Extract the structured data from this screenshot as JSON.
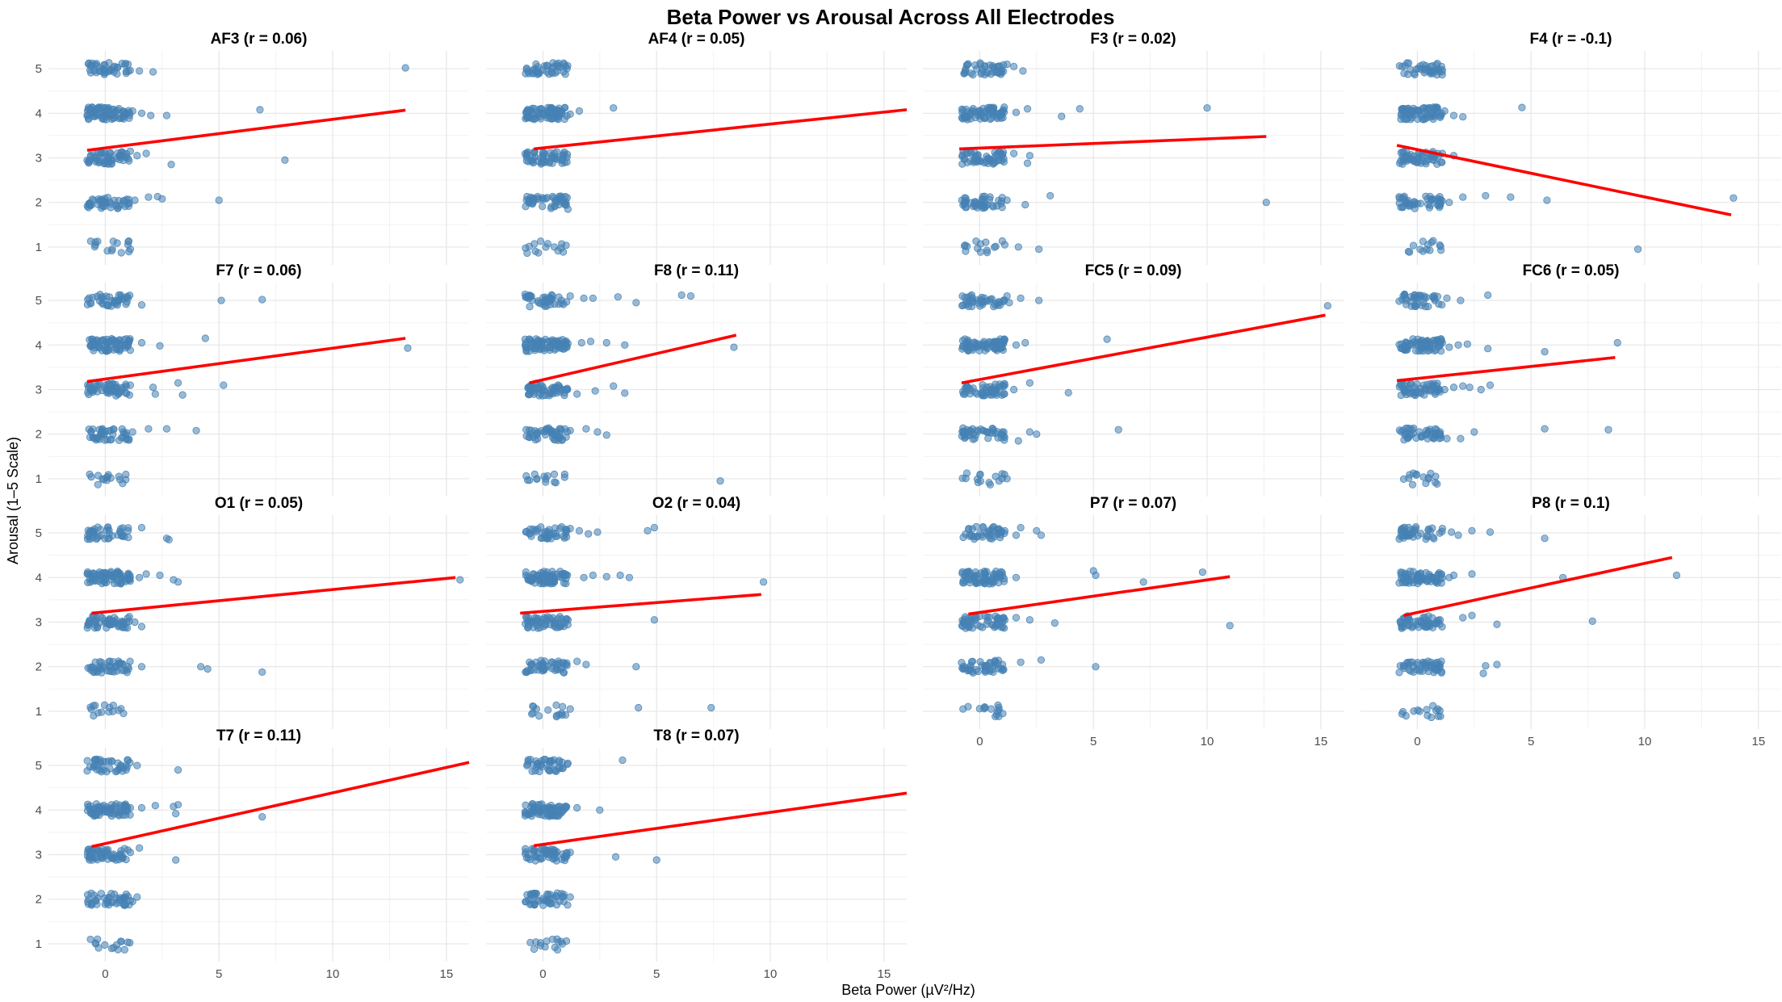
{
  "chart_data": {
    "type": "scatter",
    "title": "Beta Power vs Arousal Across All Electrodes",
    "xlabel": "Beta Power (µV²/Hz)",
    "ylabel": "Arousal (1–5 Scale)",
    "x_ticks": [
      0,
      5,
      10,
      15
    ],
    "y_ticks": [
      1,
      2,
      3,
      4,
      5
    ],
    "xlim": [
      -2.5,
      16
    ],
    "ylim": [
      0.6,
      5.4
    ],
    "grid": true,
    "legend": "none",
    "colors": {
      "points": "#4682b4",
      "fit_line": "#ff0000"
    },
    "panels": [
      {
        "title": "AF3 (r = 0.06)",
        "fit": {
          "x": [
            -0.8,
            13.2
          ],
          "y": [
            3.17,
            4.07
          ]
        },
        "points": [
          [
            1.0,
            5.1
          ],
          [
            1.5,
            4.95
          ],
          [
            2.1,
            4.93
          ],
          [
            13.2,
            5.02
          ],
          [
            1.2,
            4.05
          ],
          [
            1.6,
            4.0
          ],
          [
            2.0,
            3.95
          ],
          [
            2.7,
            3.95
          ],
          [
            6.8,
            4.08
          ],
          [
            1.1,
            3.15
          ],
          [
            1.4,
            3.05
          ],
          [
            1.8,
            3.1
          ],
          [
            2.9,
            2.85
          ],
          [
            7.9,
            2.95
          ],
          [
            1.3,
            2.05
          ],
          [
            1.9,
            2.12
          ],
          [
            2.3,
            2.13
          ],
          [
            2.5,
            2.08
          ],
          [
            5.0,
            2.05
          ],
          [
            1.0,
            1.05
          ],
          [
            1.1,
            0.95
          ]
        ]
      },
      {
        "title": "AF4 (r = 0.05)",
        "fit": {
          "x": [
            -0.4,
            16.0
          ],
          "y": [
            3.2,
            4.08
          ]
        },
        "points": [
          [
            0.6,
            5.1
          ],
          [
            1.0,
            5.05
          ],
          [
            0.8,
            4.05
          ],
          [
            1.2,
            3.98
          ],
          [
            1.6,
            4.05
          ],
          [
            3.1,
            4.12
          ],
          [
            0.9,
            3.05
          ],
          [
            0.7,
            1.95
          ],
          [
            1.1,
            1.85
          ],
          [
            0.5,
            1.0
          ]
        ]
      },
      {
        "title": "F3 (r = 0.02)",
        "fit": {
          "x": [
            -0.9,
            12.6
          ],
          "y": [
            3.2,
            3.48
          ]
        },
        "points": [
          [
            1.2,
            5.1
          ],
          [
            1.5,
            5.05
          ],
          [
            1.9,
            4.95
          ],
          [
            1.0,
            4.05
          ],
          [
            1.6,
            4.02
          ],
          [
            2.1,
            4.1
          ],
          [
            3.6,
            3.93
          ],
          [
            4.4,
            4.1
          ],
          [
            10.0,
            4.12
          ],
          [
            1.5,
            3.1
          ],
          [
            2.1,
            2.88
          ],
          [
            2.2,
            3.05
          ],
          [
            1.2,
            2.05
          ],
          [
            2.0,
            1.95
          ],
          [
            3.1,
            2.15
          ],
          [
            12.6,
            2.0
          ],
          [
            1.1,
            1.05
          ],
          [
            1.7,
            1.0
          ],
          [
            2.6,
            0.95
          ]
        ]
      },
      {
        "title": "F4 (r = -0.1)",
        "fit": {
          "x": [
            -0.9,
            13.8
          ],
          "y": [
            3.28,
            1.72
          ]
        },
        "points": [
          [
            1.2,
            4.05
          ],
          [
            1.6,
            3.95
          ],
          [
            2.0,
            3.92
          ],
          [
            4.6,
            4.13
          ],
          [
            1.1,
            3.1
          ],
          [
            1.6,
            3.05
          ],
          [
            1.0,
            2.05
          ],
          [
            1.4,
            2.0
          ],
          [
            2.0,
            2.12
          ],
          [
            3.0,
            2.15
          ],
          [
            4.1,
            2.12
          ],
          [
            5.7,
            2.05
          ],
          [
            13.9,
            2.1
          ],
          [
            9.7,
            0.95
          ]
        ]
      },
      {
        "title": "F7 (r = 0.06)",
        "fit": {
          "x": [
            -0.8,
            13.2
          ],
          "y": [
            3.18,
            4.15
          ]
        },
        "points": [
          [
            1.0,
            5.05
          ],
          [
            1.6,
            4.9
          ],
          [
            5.1,
            5.0
          ],
          [
            6.9,
            5.02
          ],
          [
            1.0,
            4.05
          ],
          [
            1.6,
            4.05
          ],
          [
            2.4,
            3.98
          ],
          [
            4.4,
            4.15
          ],
          [
            13.3,
            3.93
          ],
          [
            1.1,
            3.1
          ],
          [
            2.1,
            3.05
          ],
          [
            2.2,
            2.9
          ],
          [
            3.2,
            3.15
          ],
          [
            3.4,
            2.88
          ],
          [
            5.2,
            3.1
          ],
          [
            1.2,
            2.05
          ],
          [
            1.9,
            2.12
          ],
          [
            2.7,
            2.12
          ],
          [
            4.0,
            2.08
          ],
          [
            0.6,
            1.05
          ],
          [
            0.9,
            0.98
          ]
        ]
      },
      {
        "title": "F8 (r = 0.11)",
        "fit": {
          "x": [
            -0.6,
            8.5
          ],
          "y": [
            3.15,
            4.22
          ]
        },
        "points": [
          [
            1.2,
            5.1
          ],
          [
            1.8,
            5.05
          ],
          [
            2.2,
            5.05
          ],
          [
            3.3,
            5.08
          ],
          [
            4.1,
            4.95
          ],
          [
            6.1,
            5.12
          ],
          [
            6.5,
            5.1
          ],
          [
            1.0,
            4.05
          ],
          [
            1.7,
            4.05
          ],
          [
            2.1,
            4.08
          ],
          [
            2.8,
            4.05
          ],
          [
            3.6,
            4.0
          ],
          [
            8.4,
            3.95
          ],
          [
            1.0,
            3.0
          ],
          [
            1.5,
            2.9
          ],
          [
            2.3,
            2.97
          ],
          [
            3.1,
            3.08
          ],
          [
            3.6,
            2.92
          ],
          [
            0.6,
            2.05
          ],
          [
            1.2,
            2.08
          ],
          [
            1.9,
            2.12
          ],
          [
            2.4,
            2.05
          ],
          [
            2.8,
            1.98
          ],
          [
            0.5,
            1.1
          ],
          [
            7.8,
            0.95
          ]
        ]
      },
      {
        "title": "FC5 (r = 0.09)",
        "fit": {
          "x": [
            -0.8,
            15.2
          ],
          "y": [
            3.15,
            4.67
          ]
        },
        "points": [
          [
            1.2,
            5.1
          ],
          [
            1.3,
            4.95
          ],
          [
            1.8,
            5.05
          ],
          [
            2.6,
            5.0
          ],
          [
            1.0,
            4.05
          ],
          [
            1.6,
            4.0
          ],
          [
            2.0,
            4.05
          ],
          [
            5.6,
            4.13
          ],
          [
            15.3,
            4.88
          ],
          [
            1.1,
            3.1
          ],
          [
            1.5,
            3.0
          ],
          [
            2.2,
            3.15
          ],
          [
            3.9,
            2.93
          ],
          [
            1.0,
            2.05
          ],
          [
            1.7,
            1.85
          ],
          [
            2.2,
            2.05
          ],
          [
            2.5,
            2.0
          ],
          [
            6.1,
            2.1
          ],
          [
            0.7,
            1.05
          ],
          [
            1.2,
            1.0
          ]
        ]
      },
      {
        "title": "FC6 (r = 0.05)",
        "fit": {
          "x": [
            -0.9,
            8.7
          ],
          "y": [
            3.2,
            3.72
          ]
        },
        "points": [
          [
            1.3,
            5.05
          ],
          [
            1.9,
            5.0
          ],
          [
            3.1,
            5.12
          ],
          [
            1.0,
            4.05
          ],
          [
            1.4,
            3.95
          ],
          [
            1.8,
            4.0
          ],
          [
            2.2,
            4.02
          ],
          [
            3.1,
            3.92
          ],
          [
            5.6,
            3.85
          ],
          [
            8.8,
            4.05
          ],
          [
            1.2,
            3.0
          ],
          [
            1.6,
            3.05
          ],
          [
            2.0,
            3.08
          ],
          [
            2.3,
            3.05
          ],
          [
            2.8,
            3.0
          ],
          [
            3.2,
            3.1
          ],
          [
            1.0,
            2.05
          ],
          [
            1.3,
            1.9
          ],
          [
            1.9,
            1.9
          ],
          [
            2.5,
            2.05
          ],
          [
            5.6,
            2.12
          ],
          [
            8.4,
            2.1
          ],
          [
            0.8,
            1.05
          ]
        ]
      },
      {
        "title": "O1 (r = 0.05)",
        "fit": {
          "x": [
            -0.6,
            15.4
          ],
          "y": [
            3.2,
            4.0
          ]
        },
        "points": [
          [
            1.0,
            5.05
          ],
          [
            1.6,
            5.12
          ],
          [
            2.7,
            4.88
          ],
          [
            2.8,
            4.85
          ],
          [
            1.0,
            4.05
          ],
          [
            1.5,
            4.0
          ],
          [
            1.8,
            4.08
          ],
          [
            2.4,
            4.05
          ],
          [
            3.0,
            3.95
          ],
          [
            3.2,
            3.9
          ],
          [
            15.6,
            3.95
          ],
          [
            1.3,
            3.0
          ],
          [
            1.6,
            2.9
          ],
          [
            1.0,
            2.0
          ],
          [
            1.6,
            2.0
          ],
          [
            4.2,
            2.0
          ],
          [
            4.5,
            1.95
          ],
          [
            6.9,
            1.88
          ],
          [
            0.8,
            0.95
          ]
        ]
      },
      {
        "title": "O2 (r = 0.04)",
        "fit": {
          "x": [
            -1.0,
            9.6
          ],
          "y": [
            3.2,
            3.62
          ]
        },
        "points": [
          [
            1.2,
            5.1
          ],
          [
            1.6,
            5.05
          ],
          [
            2.0,
            4.98
          ],
          [
            2.4,
            5.02
          ],
          [
            4.6,
            5.05
          ],
          [
            4.9,
            5.12
          ],
          [
            1.0,
            4.05
          ],
          [
            1.8,
            4.0
          ],
          [
            2.2,
            4.05
          ],
          [
            2.8,
            4.02
          ],
          [
            3.4,
            4.05
          ],
          [
            3.8,
            4.0
          ],
          [
            9.7,
            3.9
          ],
          [
            1.1,
            3.05
          ],
          [
            4.9,
            3.05
          ],
          [
            1.0,
            2.05
          ],
          [
            1.5,
            2.12
          ],
          [
            1.9,
            2.05
          ],
          [
            4.1,
            2.0
          ],
          [
            1.0,
            0.92
          ],
          [
            1.2,
            1.05
          ],
          [
            4.2,
            1.08
          ],
          [
            7.4,
            1.08
          ]
        ]
      },
      {
        "title": "P7 (r = 0.07)",
        "fit": {
          "x": [
            -0.5,
            11.0
          ],
          "y": [
            3.18,
            4.02
          ]
        },
        "points": [
          [
            1.1,
            5.05
          ],
          [
            1.6,
            4.95
          ],
          [
            1.8,
            5.12
          ],
          [
            2.5,
            5.05
          ],
          [
            2.7,
            4.95
          ],
          [
            0.9,
            4.05
          ],
          [
            1.6,
            4.0
          ],
          [
            5.0,
            4.15
          ],
          [
            5.1,
            4.05
          ],
          [
            7.2,
            3.9
          ],
          [
            9.8,
            4.12
          ],
          [
            11.0,
            2.92
          ],
          [
            1.1,
            3.05
          ],
          [
            1.6,
            3.1
          ],
          [
            2.2,
            3.05
          ],
          [
            3.3,
            2.98
          ],
          [
            1.0,
            2.05
          ],
          [
            1.8,
            2.1
          ],
          [
            2.7,
            2.15
          ],
          [
            5.1,
            2.0
          ],
          [
            0.5,
            1.05
          ]
        ]
      },
      {
        "title": "P8 (r = 0.1)",
        "fit": {
          "x": [
            -0.6,
            11.2
          ],
          "y": [
            3.15,
            4.45
          ]
        },
        "points": [
          [
            1.1,
            5.1
          ],
          [
            1.5,
            5.02
          ],
          [
            1.8,
            4.95
          ],
          [
            2.4,
            5.05
          ],
          [
            3.2,
            5.02
          ],
          [
            5.6,
            4.88
          ],
          [
            0.9,
            4.05
          ],
          [
            1.4,
            4.0
          ],
          [
            1.6,
            4.05
          ],
          [
            2.4,
            4.08
          ],
          [
            6.4,
            4.0
          ],
          [
            11.4,
            4.05
          ],
          [
            1.0,
            3.05
          ],
          [
            2.0,
            3.1
          ],
          [
            2.4,
            3.15
          ],
          [
            3.5,
            2.95
          ],
          [
            7.7,
            3.02
          ],
          [
            1.0,
            2.05
          ],
          [
            3.0,
            2.02
          ],
          [
            3.5,
            2.05
          ],
          [
            2.9,
            1.85
          ],
          [
            0.9,
            1.05
          ]
        ]
      },
      {
        "title": "T7 (r = 0.11)",
        "fit": {
          "x": [
            -0.6,
            16.0
          ],
          "y": [
            3.18,
            5.07
          ]
        },
        "points": [
          [
            1.0,
            5.12
          ],
          [
            1.4,
            5.0
          ],
          [
            3.2,
            4.9
          ],
          [
            1.1,
            4.05
          ],
          [
            1.6,
            4.05
          ],
          [
            2.2,
            4.1
          ],
          [
            3.0,
            4.08
          ],
          [
            3.1,
            3.92
          ],
          [
            3.2,
            4.12
          ],
          [
            6.9,
            3.85
          ],
          [
            1.1,
            3.05
          ],
          [
            1.5,
            3.15
          ],
          [
            3.1,
            2.88
          ],
          [
            1.2,
            1.95
          ],
          [
            1.4,
            2.05
          ],
          [
            0.7,
            1.05
          ]
        ]
      },
      {
        "title": "T8 (r = 0.07)",
        "fit": {
          "x": [
            -0.4,
            16.0
          ],
          "y": [
            3.2,
            4.38
          ]
        },
        "points": [
          [
            1.1,
            5.05
          ],
          [
            3.5,
            5.12
          ],
          [
            1.0,
            4.05
          ],
          [
            1.5,
            4.05
          ],
          [
            2.5,
            4.0
          ],
          [
            1.2,
            3.05
          ],
          [
            3.2,
            2.95
          ],
          [
            5.0,
            2.88
          ],
          [
            1.2,
            2.05
          ],
          [
            0.8,
            1.05
          ]
        ]
      }
    ]
  }
}
